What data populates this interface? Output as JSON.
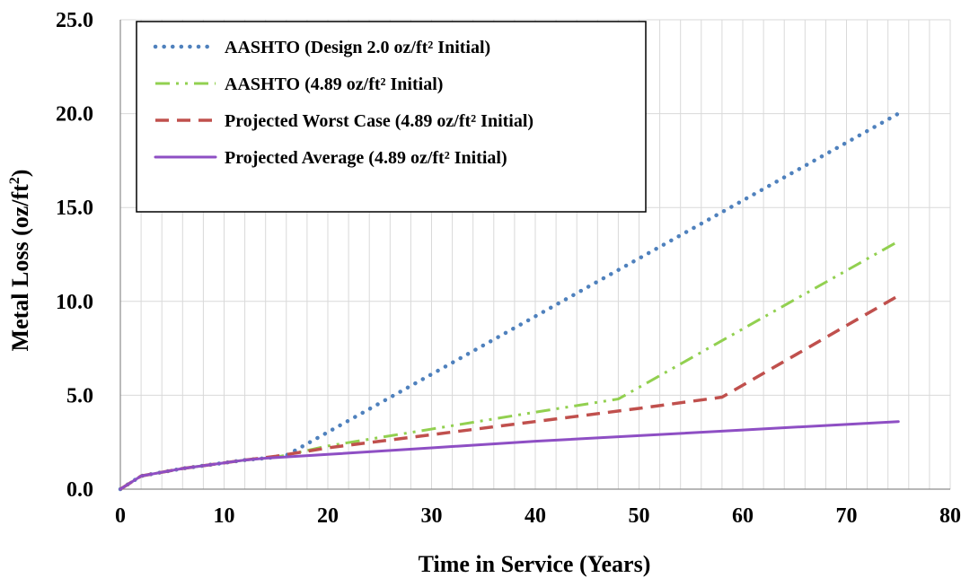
{
  "chart_data": {
    "type": "line",
    "xlabel": "Time in Service (Years)",
    "ylabel_main": "Metal Loss (oz/ft",
    "ylabel_sup": "2",
    "ylabel_end": ")",
    "xlim": [
      0,
      80
    ],
    "ylim": [
      0,
      25
    ],
    "x_ticks": [
      0,
      10,
      20,
      30,
      40,
      50,
      60,
      70,
      80
    ],
    "x_tick_labels": [
      "0",
      "10",
      "20",
      "30",
      "40",
      "50",
      "60",
      "70",
      "80"
    ],
    "y_ticks": [
      0,
      5,
      10,
      15,
      20,
      25
    ],
    "y_tick_labels": [
      "0.0",
      "5.0",
      "10.0",
      "15.0",
      "20.0",
      "25.0"
    ],
    "x_minor_step": 2,
    "grid": true,
    "legend_position": "top-left",
    "series": [
      {
        "name": "AASHTO (Design 2.0 oz/ft² Initial)",
        "color": "#4F81BD",
        "style": "dotted",
        "points": [
          [
            0,
            0
          ],
          [
            2,
            0.7
          ],
          [
            4,
            0.9
          ],
          [
            6,
            1.1
          ],
          [
            8,
            1.25
          ],
          [
            10,
            1.4
          ],
          [
            12,
            1.55
          ],
          [
            15,
            1.7
          ],
          [
            16,
            1.8
          ],
          [
            75,
            20.0
          ]
        ]
      },
      {
        "name": "AASHTO (4.89 oz/ft² Initial)",
        "color": "#92D050",
        "style": "dash-dot-dot",
        "points": [
          [
            0,
            0
          ],
          [
            2,
            0.7
          ],
          [
            4,
            0.9
          ],
          [
            6,
            1.1
          ],
          [
            8,
            1.25
          ],
          [
            10,
            1.4
          ],
          [
            12,
            1.55
          ],
          [
            15,
            1.7
          ],
          [
            20,
            2.3
          ],
          [
            30,
            3.2
          ],
          [
            40,
            4.1
          ],
          [
            48,
            4.8
          ],
          [
            75,
            13.2
          ]
        ]
      },
      {
        "name": "Projected Worst Case (4.89 oz/ft² Initial)",
        "color": "#C0504D",
        "style": "dashed",
        "points": [
          [
            0,
            0
          ],
          [
            2,
            0.7
          ],
          [
            4,
            0.9
          ],
          [
            6,
            1.1
          ],
          [
            8,
            1.25
          ],
          [
            10,
            1.4
          ],
          [
            12,
            1.55
          ],
          [
            15,
            1.75
          ],
          [
            20,
            2.2
          ],
          [
            30,
            2.9
          ],
          [
            40,
            3.6
          ],
          [
            50,
            4.3
          ],
          [
            58,
            4.9
          ],
          [
            75,
            10.3
          ]
        ]
      },
      {
        "name": "Projected Average (4.89 oz/ft² Initial)",
        "color": "#8E4FC4",
        "style": "solid",
        "points": [
          [
            0,
            0
          ],
          [
            2,
            0.7
          ],
          [
            4,
            0.9
          ],
          [
            6,
            1.1
          ],
          [
            8,
            1.25
          ],
          [
            10,
            1.4
          ],
          [
            12,
            1.55
          ],
          [
            14,
            1.65
          ],
          [
            20,
            1.85
          ],
          [
            30,
            2.2
          ],
          [
            40,
            2.55
          ],
          [
            50,
            2.85
          ],
          [
            60,
            3.15
          ],
          [
            70,
            3.45
          ],
          [
            75,
            3.6
          ]
        ]
      }
    ]
  }
}
